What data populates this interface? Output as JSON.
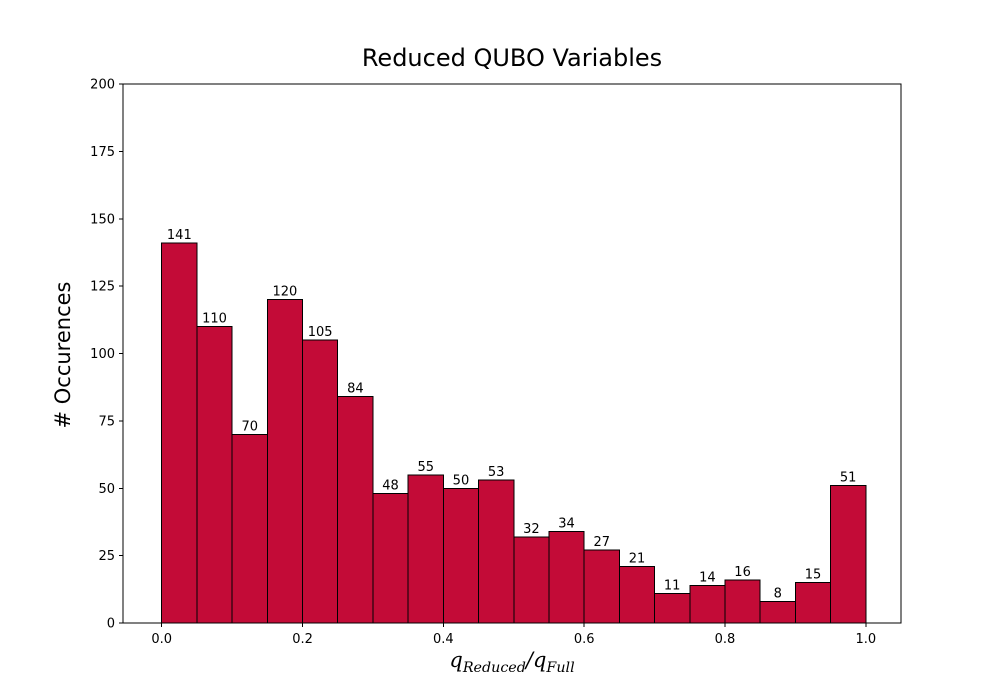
{
  "figure": {
    "title": "Reduced QUBO Variables",
    "ylabel": "# Occurences",
    "xlabel": {
      "var1": "q",
      "sub1": "Reduced",
      "sep": "/",
      "var2": "q",
      "sub2": "Full"
    }
  },
  "colors": {
    "background": "#ffffff",
    "bar_fill": "#c30b37",
    "bar_edge": "#000000",
    "axis": "#000000",
    "text": "#000000"
  },
  "chart_data": {
    "type": "bar",
    "title": "Reduced QUBO Variables",
    "xlabel": "q_Reduced / q_Full",
    "ylabel": "# Occurences",
    "bin_start": 0.0,
    "bin_width": 0.05,
    "values": [
      141,
      110,
      70,
      120,
      105,
      84,
      48,
      55,
      50,
      53,
      32,
      34,
      27,
      21,
      11,
      14,
      16,
      8,
      15,
      51
    ],
    "xlim": [
      -0.055,
      1.05
    ],
    "ylim": [
      0,
      200
    ],
    "xticks": [
      {
        "v": 0.0,
        "label": "0.0"
      },
      {
        "v": 0.2,
        "label": "0.2"
      },
      {
        "v": 0.4,
        "label": "0.4"
      },
      {
        "v": 0.6,
        "label": "0.6"
      },
      {
        "v": 0.8,
        "label": "0.8"
      },
      {
        "v": 1.0,
        "label": "1.0"
      }
    ],
    "yticks": [
      {
        "v": 0,
        "label": "0"
      },
      {
        "v": 25,
        "label": "25"
      },
      {
        "v": 50,
        "label": "50"
      },
      {
        "v": 75,
        "label": "75"
      },
      {
        "v": 100,
        "label": "100"
      },
      {
        "v": 125,
        "label": "125"
      },
      {
        "v": 150,
        "label": "150"
      },
      {
        "v": 175,
        "label": "175"
      },
      {
        "v": 200,
        "label": "200"
      }
    ],
    "grid": false,
    "legend": null
  }
}
